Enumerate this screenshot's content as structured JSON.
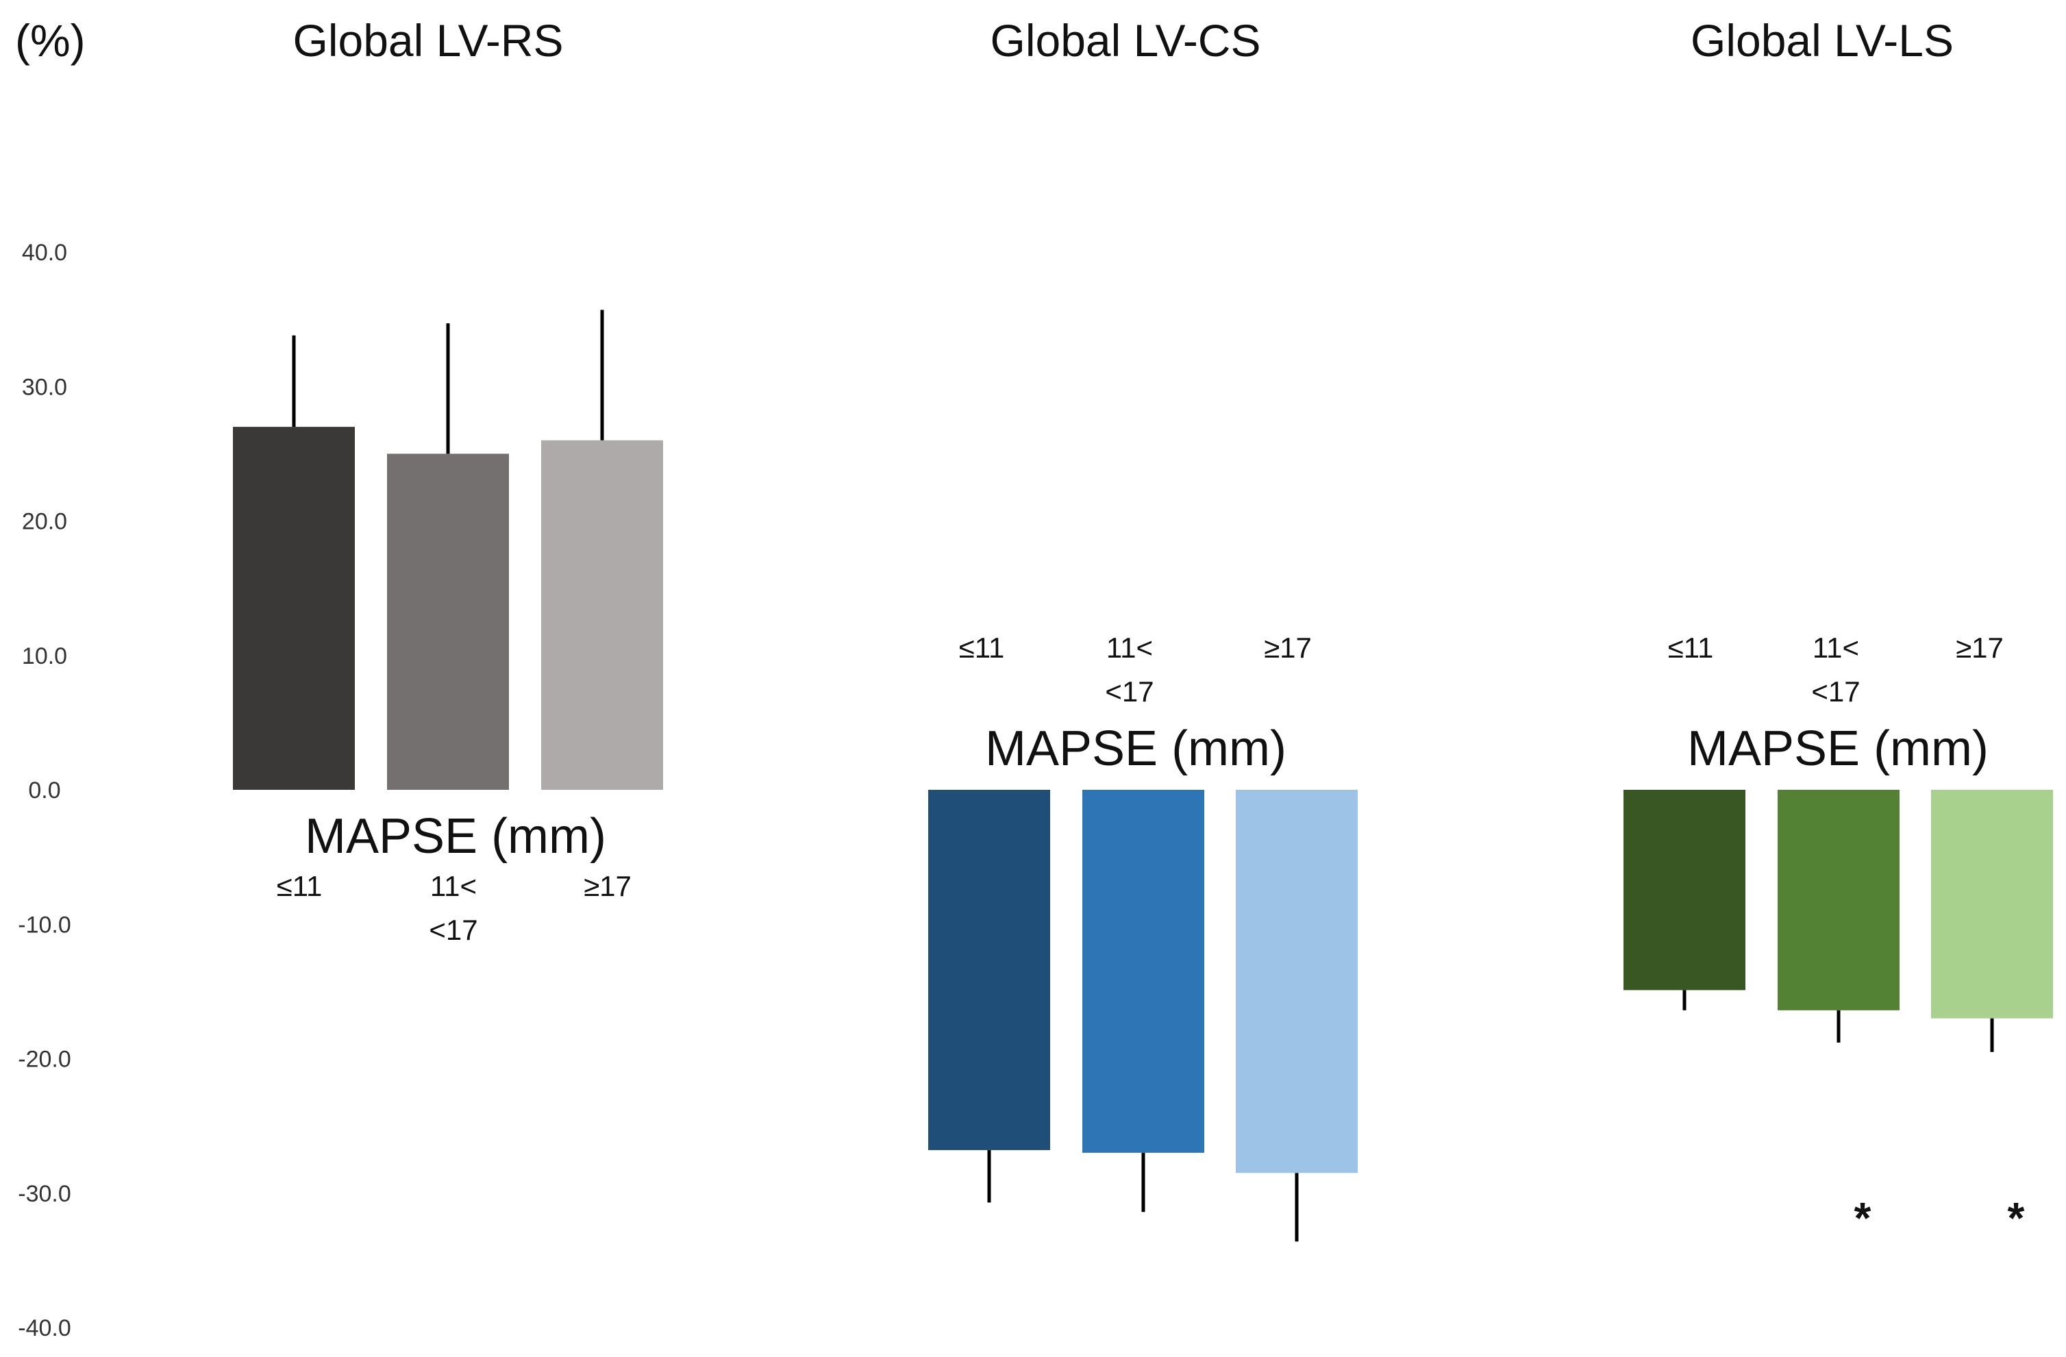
{
  "y_unit": "(%)",
  "y_ticks": [
    "40.0",
    "30.0",
    "20.0",
    "10.0",
    "0.0",
    "-10.0",
    "-20.0",
    "-30.0",
    "-40.0"
  ],
  "chart_data": {
    "type": "bar",
    "ylim": [
      -40,
      40
    ],
    "ylabel": "(%)",
    "grid": false,
    "panels": [
      {
        "title": "Global LV-RS",
        "xlabel": "MAPSE (mm)",
        "categories": [
          {
            "line1": "≤11",
            "line2": ""
          },
          {
            "line1": "11<",
            "line2": "<17"
          },
          {
            "line1": "≥17",
            "line2": ""
          }
        ],
        "values": [
          27.0,
          25.0,
          26.0
        ],
        "errors": [
          6.8,
          9.7,
          9.7
        ],
        "colors": [
          "#3b3838",
          "#757070",
          "#aeaaaa"
        ],
        "significance": [
          "",
          "",
          ""
        ]
      },
      {
        "title": "Global LV-CS",
        "xlabel": "MAPSE (mm)",
        "categories": [
          {
            "line1": "≤11",
            "line2": ""
          },
          {
            "line1": "11<",
            "line2": "<17"
          },
          {
            "line1": "≥17",
            "line2": ""
          }
        ],
        "values": [
          -26.8,
          -27.0,
          -28.5
        ],
        "errors": [
          3.9,
          4.4,
          5.1
        ],
        "colors": [
          "#1f4e79",
          "#2e75b6",
          "#9dc3e6"
        ],
        "significance": [
          "",
          "",
          ""
        ]
      },
      {
        "title": "Global LV-LS",
        "xlabel": "MAPSE (mm)",
        "categories": [
          {
            "line1": "≤11",
            "line2": ""
          },
          {
            "line1": "11<",
            "line2": "<17"
          },
          {
            "line1": "≥17",
            "line2": ""
          }
        ],
        "values": [
          -14.9,
          -16.4,
          -17.0
        ],
        "errors": [
          1.5,
          2.4,
          2.5
        ],
        "colors": [
          "#385723",
          "#548235",
          "#a9d18e"
        ],
        "significance": [
          "",
          "*",
          "*"
        ]
      }
    ]
  }
}
